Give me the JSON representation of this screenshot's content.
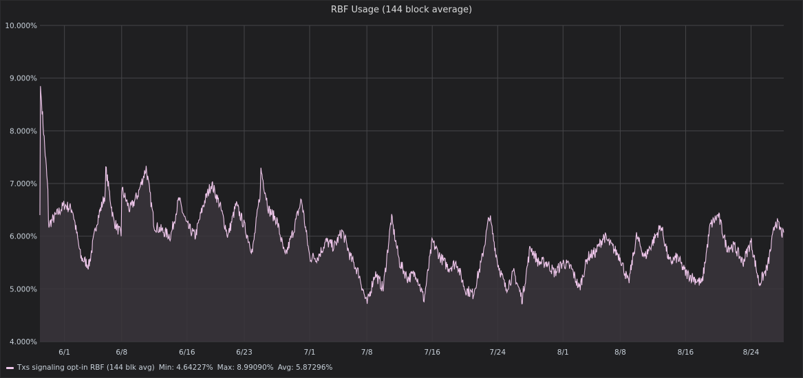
{
  "panel": {
    "title": "RBF Usage (144 block average)"
  },
  "legend": {
    "series_name": "Txs signaling opt-in RBF (144 blk avg)",
    "min": "Min: 4.64227%",
    "max": "Max: 8.99090%",
    "avg": "Avg: 5.87296%"
  },
  "colors": {
    "background": "#1f1f21",
    "grid": "#464649",
    "line": "#f0c8ec",
    "fill": "#3a353b",
    "text": "#c7d0d9"
  },
  "chart_data": {
    "type": "area",
    "title": "RBF Usage (144 block average)",
    "xlabel": "",
    "ylabel": "",
    "grid": true,
    "legend_position": "bottom-left",
    "x_ticks": [
      "6/1",
      "6/8",
      "6/16",
      "6/23",
      "7/1",
      "7/8",
      "7/16",
      "7/24",
      "8/1",
      "8/8",
      "8/16",
      "8/24"
    ],
    "y_ticks": [
      "4.000%",
      "5.000%",
      "6.000%",
      "7.000%",
      "8.000%",
      "9.000%",
      "10.000%"
    ],
    "ylim": [
      4.0,
      10.0
    ],
    "xlim": [
      "2017-05-29",
      "2017-08-28"
    ],
    "series": [
      {
        "name": "Txs signaling opt-in RBF (144 blk avg)",
        "x": [
          "2017-05-29",
          "2017-05-29",
          "2017-05-30",
          "2017-05-30",
          "2017-05-31",
          "2017-06-01",
          "2017-06-02",
          "2017-06-03",
          "2017-06-04",
          "2017-06-05",
          "2017-06-06",
          "2017-06-06",
          "2017-06-07",
          "2017-06-08",
          "2017-06-08",
          "2017-06-09",
          "2017-06-10",
          "2017-06-11",
          "2017-06-12",
          "2017-06-13",
          "2017-06-14",
          "2017-06-15",
          "2017-06-16",
          "2017-06-17",
          "2017-06-18",
          "2017-06-19",
          "2017-06-20",
          "2017-06-21",
          "2017-06-22",
          "2017-06-23",
          "2017-06-24",
          "2017-06-25",
          "2017-06-25",
          "2017-06-26",
          "2017-06-27",
          "2017-06-28",
          "2017-06-29",
          "2017-06-30",
          "2017-07-01",
          "2017-07-02",
          "2017-07-03",
          "2017-07-04",
          "2017-07-05",
          "2017-07-06",
          "2017-07-07",
          "2017-07-08",
          "2017-07-09",
          "2017-07-10",
          "2017-07-11",
          "2017-07-12",
          "2017-07-13",
          "2017-07-14",
          "2017-07-15",
          "2017-07-16",
          "2017-07-17",
          "2017-07-18",
          "2017-07-19",
          "2017-07-20",
          "2017-07-21",
          "2017-07-22",
          "2017-07-23",
          "2017-07-24",
          "2017-07-25",
          "2017-07-26",
          "2017-07-27",
          "2017-07-28",
          "2017-07-29",
          "2017-07-30",
          "2017-07-31",
          "2017-08-01",
          "2017-08-02",
          "2017-08-03",
          "2017-08-04",
          "2017-08-05",
          "2017-08-06",
          "2017-08-07",
          "2017-08-08",
          "2017-08-09",
          "2017-08-10",
          "2017-08-11",
          "2017-08-12",
          "2017-08-13",
          "2017-08-14",
          "2017-08-15",
          "2017-08-16",
          "2017-08-17",
          "2017-08-18",
          "2017-08-19",
          "2017-08-20",
          "2017-08-21",
          "2017-08-22",
          "2017-08-23",
          "2017-08-24",
          "2017-08-25",
          "2017-08-26",
          "2017-08-27",
          "2017-08-28"
        ],
        "values": [
          6.4,
          8.99,
          6.8,
          6.2,
          6.4,
          6.6,
          6.5,
          5.6,
          5.45,
          6.3,
          6.8,
          7.35,
          6.3,
          6.0,
          6.9,
          6.5,
          6.8,
          7.3,
          6.2,
          6.1,
          6.0,
          6.7,
          6.2,
          6.0,
          6.6,
          7.0,
          6.6,
          6.0,
          6.6,
          6.2,
          5.7,
          6.9,
          7.3,
          6.5,
          6.3,
          5.6,
          6.1,
          6.7,
          5.6,
          5.6,
          5.9,
          5.8,
          6.1,
          5.6,
          5.3,
          4.7,
          5.3,
          5.0,
          6.35,
          5.5,
          5.2,
          5.3,
          4.8,
          5.9,
          5.6,
          5.4,
          5.5,
          5.0,
          4.9,
          5.5,
          6.4,
          5.5,
          5.0,
          5.3,
          4.8,
          5.8,
          5.5,
          5.5,
          5.3,
          5.5,
          5.4,
          5.0,
          5.6,
          5.7,
          6.0,
          5.8,
          5.6,
          5.1,
          6.0,
          5.6,
          5.9,
          6.2,
          5.5,
          5.6,
          5.3,
          5.2,
          5.1,
          6.2,
          6.4,
          5.8,
          5.8,
          5.5,
          5.9,
          5.1,
          5.4,
          6.3,
          6.0
        ]
      }
    ]
  }
}
